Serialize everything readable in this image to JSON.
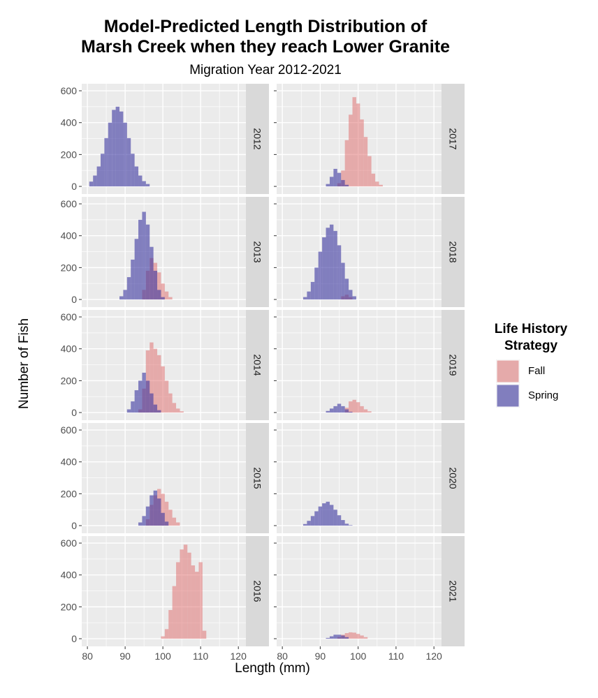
{
  "chart_data": {
    "type": "histogram",
    "title": "Model-Predicted Length Distribution of\nMarsh Creek when they reach Lower Granite",
    "subtitle": "Migration Year 2012-2021",
    "xlabel": "Length (mm)",
    "ylabel": "Number of Fish",
    "xlim": [
      78.5,
      122
    ],
    "ylim": [
      0,
      600
    ],
    "x_ticks": [
      80,
      90,
      100,
      110,
      120
    ],
    "y_ticks": [
      0,
      200,
      400,
      600
    ],
    "bin_width_mm": 1,
    "grid": true,
    "legend": {
      "title": "Life History Strategy",
      "position": "right",
      "entries": [
        "Fall",
        "Spring"
      ]
    },
    "colors": {
      "Fall": "#e06a6a",
      "Spring": "#3b35a0"
    },
    "panels": [
      {
        "year": "2012",
        "Spring": {
          "x": [
            81,
            82,
            83,
            84,
            85,
            86,
            87,
            88,
            89,
            90,
            91,
            92,
            93,
            94,
            95,
            96
          ],
          "counts": [
            30,
            68,
            125,
            205,
            303,
            400,
            480,
            500,
            470,
            400,
            303,
            205,
            125,
            68,
            33,
            15
          ]
        },
        "Fall": null
      },
      {
        "year": "2013",
        "Spring": {
          "x": [
            89,
            90,
            91,
            92,
            93,
            94,
            95,
            96,
            97,
            98,
            99,
            100
          ],
          "counts": [
            20,
            60,
            140,
            250,
            380,
            500,
            550,
            470,
            330,
            180,
            60,
            15
          ]
        },
        "Fall": {
          "x": [
            95,
            96,
            97,
            98,
            99,
            100,
            101,
            102
          ],
          "counts": [
            60,
            180,
            260,
            230,
            170,
            100,
            50,
            15
          ]
        }
      },
      {
        "year": "2014",
        "Spring": {
          "x": [
            91,
            92,
            93,
            94,
            95,
            96,
            97,
            98,
            99
          ],
          "counts": [
            20,
            70,
            140,
            200,
            250,
            200,
            120,
            50,
            15
          ]
        },
        "Fall": {
          "x": [
            94,
            95,
            96,
            97,
            98,
            99,
            100,
            101,
            102,
            103,
            104,
            105
          ],
          "counts": [
            20,
            150,
            390,
            440,
            400,
            360,
            290,
            200,
            120,
            60,
            25,
            8
          ]
        }
      },
      {
        "year": "2015",
        "Spring": {
          "x": [
            94,
            95,
            96,
            97,
            98,
            99,
            100,
            101
          ],
          "counts": [
            20,
            60,
            120,
            190,
            220,
            170,
            80,
            25
          ]
        },
        "Fall": {
          "x": [
            96,
            97,
            98,
            99,
            100,
            101,
            102,
            103,
            104
          ],
          "counts": [
            40,
            130,
            190,
            230,
            200,
            150,
            100,
            50,
            20
          ]
        }
      },
      {
        "year": "2016",
        "Spring": null,
        "Fall": {
          "x": [
            100,
            101,
            102,
            103,
            104,
            105,
            106,
            107,
            108,
            109,
            110,
            111
          ],
          "counts": [
            15,
            60,
            180,
            330,
            480,
            560,
            590,
            540,
            460,
            420,
            480,
            50
          ]
        }
      },
      {
        "year": "2017",
        "Spring": {
          "x": [
            92,
            93,
            94,
            95,
            96,
            97
          ],
          "counts": [
            15,
            60,
            110,
            85,
            40,
            10
          ]
        },
        "Fall": {
          "x": [
            95,
            96,
            97,
            98,
            99,
            100,
            101,
            102,
            103,
            104,
            105,
            106
          ],
          "counts": [
            20,
            100,
            290,
            450,
            560,
            520,
            420,
            310,
            190,
            80,
            30,
            10
          ]
        }
      },
      {
        "year": "2018",
        "Spring": {
          "x": [
            86,
            87,
            88,
            89,
            90,
            91,
            92,
            93,
            94,
            95,
            96,
            97,
            98,
            99
          ],
          "counts": [
            15,
            50,
            110,
            200,
            300,
            390,
            450,
            470,
            430,
            340,
            230,
            130,
            60,
            20
          ]
        },
        "Fall": {
          "x": [
            96,
            97,
            98
          ],
          "counts": [
            20,
            30,
            15
          ]
        }
      },
      {
        "year": "2019",
        "Spring": {
          "x": [
            92,
            93,
            94,
            95,
            96,
            97,
            98
          ],
          "counts": [
            10,
            25,
            40,
            55,
            40,
            20,
            5
          ]
        },
        "Fall": {
          "x": [
            97,
            98,
            99,
            100,
            101,
            102,
            103
          ],
          "counts": [
            30,
            70,
            80,
            65,
            40,
            20,
            8
          ]
        }
      },
      {
        "year": "2020",
        "Spring": {
          "x": [
            86,
            87,
            88,
            89,
            90,
            91,
            92,
            93,
            94,
            95,
            96,
            97,
            98
          ],
          "counts": [
            10,
            30,
            60,
            90,
            120,
            140,
            150,
            130,
            100,
            65,
            35,
            12,
            3
          ]
        },
        "Fall": null
      },
      {
        "year": "2021",
        "Spring": {
          "x": [
            92,
            93,
            94,
            95,
            96,
            97
          ],
          "counts": [
            5,
            15,
            25,
            25,
            20,
            10
          ]
        },
        "Fall": {
          "x": [
            95,
            96,
            97,
            98,
            99,
            100,
            101,
            102
          ],
          "counts": [
            10,
            25,
            35,
            40,
            38,
            30,
            20,
            10
          ]
        }
      }
    ]
  }
}
